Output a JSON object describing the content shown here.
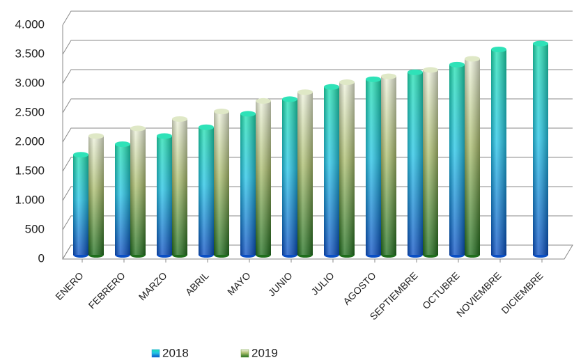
{
  "chart_data": {
    "type": "bar3d",
    "categories": [
      "ENERO",
      "FEBRERO",
      "MARZO",
      "ABRIL",
      "MAYO",
      "JUNIO",
      "JULIO",
      "AGOSTO",
      "SEPTIEMBRE",
      "OCTUBRE",
      "NOVIEMBRE",
      "DICIEMBRE"
    ],
    "series": [
      {
        "name": "2018",
        "color": "#1a8fe0",
        "values": [
          1700,
          1880,
          2020,
          2170,
          2400,
          2650,
          2860,
          2990,
          3110,
          3240,
          3500,
          3600
        ]
      },
      {
        "name": "2019",
        "color": "#6a9a3a",
        "values": [
          2020,
          2150,
          2310,
          2440,
          2620,
          2770,
          2940,
          3040,
          3150,
          3340,
          null,
          null
        ]
      }
    ],
    "ylim": [
      0,
      4000
    ],
    "yticks": [
      0,
      500,
      {
        "value": 1000,
        "label": "1.000"
      },
      {
        "value": 1500,
        "label": "1.500"
      },
      {
        "value": 2000,
        "label": "2.000"
      },
      {
        "value": 2500,
        "label": "2.500"
      },
      {
        "value": 3000,
        "label": "3.000"
      },
      {
        "value": 3500,
        "label": "3.500"
      },
      {
        "value": 4000,
        "label": "4.000"
      }
    ],
    "grid": true
  }
}
